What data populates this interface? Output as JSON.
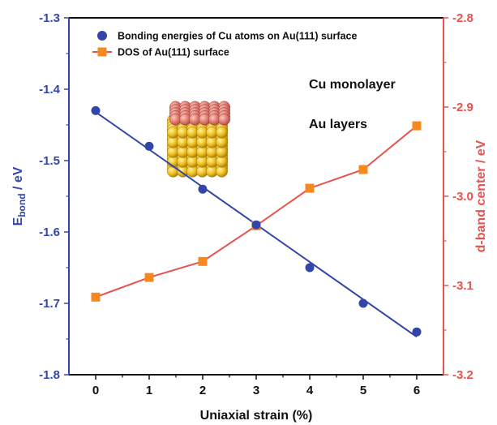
{
  "chart_data": {
    "type": "line",
    "xlabel": "Uniaxial strain (%)",
    "ylabel_main": "E",
    "ylabel_sub": "bond",
    "ylabel_unit": " / eV",
    "y2label": "d-band center / eV",
    "x_ticks": [
      "0",
      "1",
      "2",
      "3",
      "4",
      "5",
      "6"
    ],
    "xlim": [
      -0.5,
      6.5
    ],
    "ylim": [
      -1.8,
      -1.3
    ],
    "y_ticks": [
      "-1.8",
      "-1.7",
      "-1.6",
      "-1.5",
      "-1.4",
      "-1.3"
    ],
    "y2lim": [
      -3.2,
      -2.8
    ],
    "y2_ticks": [
      "-3.2",
      "-3.1",
      "-3.0",
      "-2.9",
      "-2.8"
    ],
    "grid": false,
    "legend_position": "top-left",
    "series": [
      {
        "name": "Bonding energies of Cu atoms on Au(111) surface",
        "axis": "left",
        "marker": "circle",
        "color": "#3346a8",
        "x": [
          0,
          1,
          2,
          3,
          4,
          5,
          6
        ],
        "y": [
          -1.43,
          -1.48,
          -1.54,
          -1.59,
          -1.65,
          -1.7,
          -1.74
        ],
        "fit_line": [
          [
            0,
            -1.432
          ],
          [
            6,
            -1.747
          ]
        ]
      },
      {
        "name": "DOS of Au(111) surface",
        "axis": "right",
        "marker": "square",
        "line_color": "#e8524f",
        "marker_color": "#f5891f",
        "x": [
          0,
          1,
          2,
          3,
          4,
          5,
          6
        ],
        "y": [
          -3.113,
          -3.091,
          -3.073,
          -3.033,
          -2.991,
          -2.97,
          -2.921
        ]
      }
    ],
    "inset": {
      "labels": [
        "Cu monolayer",
        "Au layers"
      ],
      "top_color": "#e07a70",
      "bottom_color": "#f0c020"
    },
    "colors": {
      "left_axis": "#3346a8",
      "right_axis": "#e8524f"
    }
  }
}
